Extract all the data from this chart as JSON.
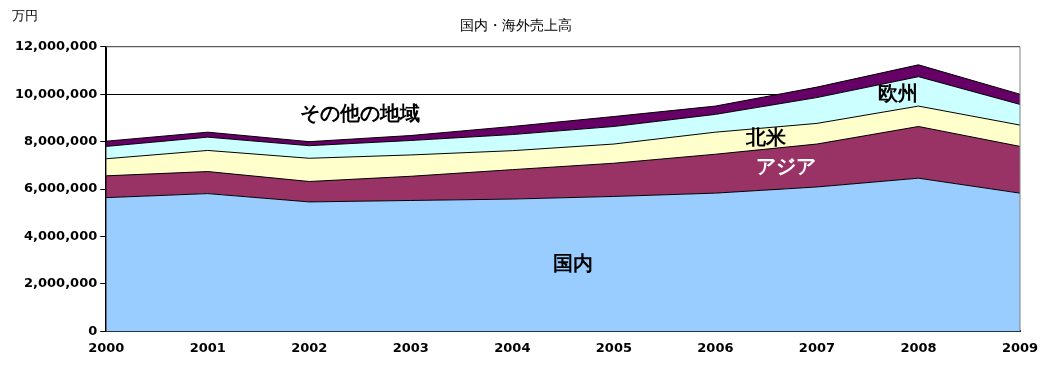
{
  "chart_data": {
    "type": "area",
    "title": "国内・海外売上高",
    "ylabel": "万円",
    "stacked": true,
    "grid": "y",
    "legend": false,
    "x": [
      2000,
      2001,
      2002,
      2003,
      2004,
      2005,
      2006,
      2007,
      2008,
      2009
    ],
    "xlim": [
      2000,
      2009
    ],
    "xticks": [
      2000,
      2001,
      2002,
      2003,
      2004,
      2005,
      2006,
      2007,
      2008,
      2009
    ],
    "ylim": [
      0,
      12000000
    ],
    "yticks": [
      0,
      {
        "value": 2000000,
        "label": "2,000,000"
      },
      {
        "value": 4000000,
        "label": "4,000,000"
      },
      {
        "value": 6000000,
        "label": "6,000,000"
      },
      {
        "value": 8000000,
        "label": "8,000,000"
      },
      {
        "value": 10000000,
        "label": "10,000,000"
      },
      {
        "value": 12000000,
        "label": "12,000,000"
      }
    ],
    "series": [
      {
        "name": "国内",
        "color": "#99ccff",
        "values": [
          5640000,
          5810000,
          5460000,
          5520000,
          5580000,
          5690000,
          5830000,
          6090000,
          6460000,
          5830000
        ]
      },
      {
        "name": "アジア",
        "color": "#993366",
        "values": [
          920000,
          930000,
          860000,
          1020000,
          1240000,
          1400000,
          1640000,
          1810000,
          2180000,
          1970000
        ]
      },
      {
        "name": "北米",
        "color": "#ffffcc",
        "values": [
          720000,
          890000,
          980000,
          900000,
          800000,
          810000,
          930000,
          870000,
          860000,
          900000
        ]
      },
      {
        "name": "欧州",
        "color": "#ccffff",
        "values": [
          520000,
          560000,
          530000,
          610000,
          680000,
          740000,
          750000,
          1090000,
          1240000,
          870000
        ]
      },
      {
        "name": "その他の地域",
        "color": "#660066",
        "values": [
          220000,
          210000,
          170000,
          210000,
          340000,
          420000,
          350000,
          440000,
          500000,
          430000
        ]
      }
    ]
  }
}
